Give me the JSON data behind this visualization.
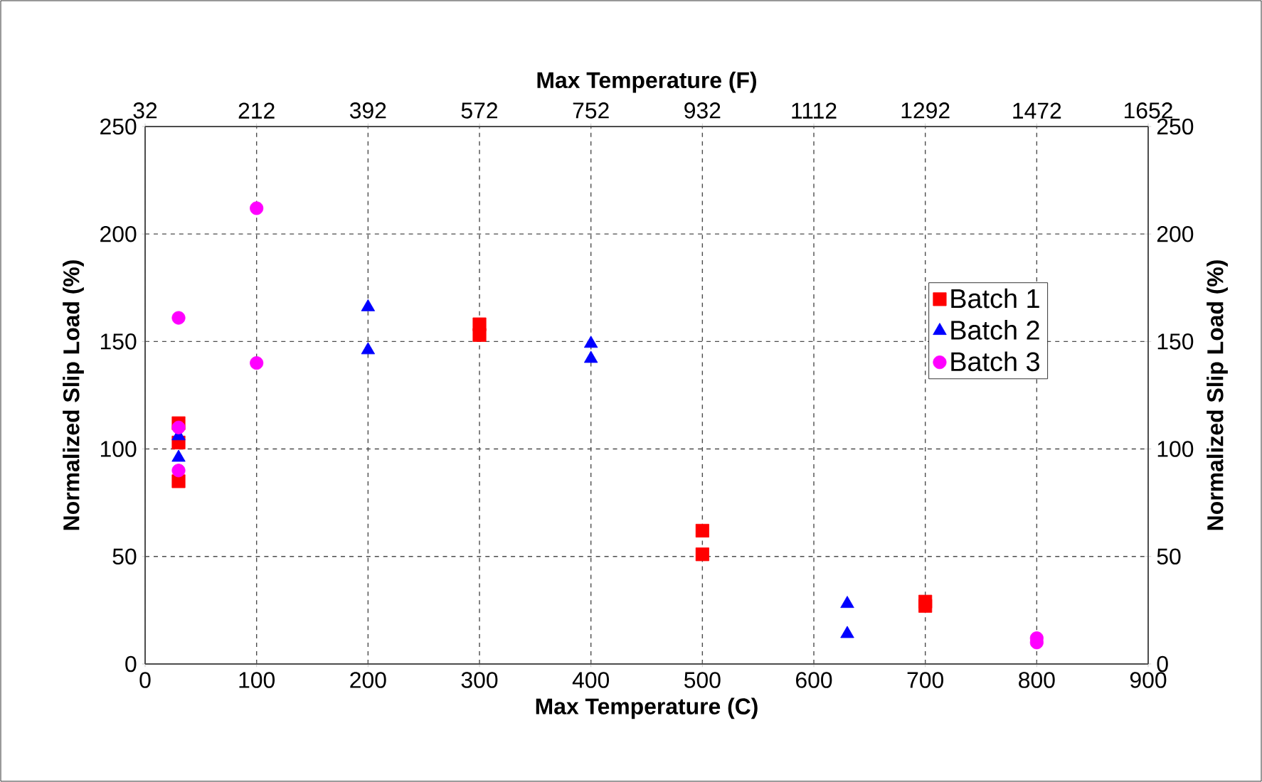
{
  "chart_data": {
    "type": "scatter",
    "xlabel": "Max Temperature (C)",
    "ylabel": "Normalized Slip Load (%)",
    "y2label": "Normalized Slip Load (%)",
    "x2label": "Max Temperature (F)",
    "xlim": [
      0,
      900
    ],
    "xticks": [
      0,
      100,
      200,
      300,
      400,
      500,
      600,
      700,
      800,
      900
    ],
    "ylim": [
      0,
      250
    ],
    "yticks": [
      0,
      50,
      100,
      150,
      200,
      250
    ],
    "y2lim": [
      0,
      250
    ],
    "y2ticks": [
      0,
      50,
      100,
      150,
      200,
      250
    ],
    "x2lim": [
      32,
      1652
    ],
    "x2ticks": [
      32,
      212,
      392,
      572,
      752,
      932,
      1112,
      1292,
      1472,
      1652
    ],
    "grid": true,
    "legend": "right",
    "series": [
      {
        "name": "Batch 1",
        "color": "#ff0000",
        "marker": "square",
        "x": [
          30,
          30,
          30,
          300,
          300,
          500,
          500,
          700,
          700
        ],
        "values": [
          112,
          103,
          85,
          158,
          153,
          62,
          51,
          29,
          27
        ]
      },
      {
        "name": "Batch 2",
        "color": "#0000ff",
        "marker": "triangle",
        "x": [
          30,
          30,
          200,
          200,
          400,
          400,
          630,
          630
        ],
        "values": [
          106,
          96,
          166,
          146,
          149,
          142,
          28,
          14
        ]
      },
      {
        "name": "Batch 3",
        "color": "#ff00ff",
        "marker": "circle",
        "x": [
          30,
          30,
          30,
          100,
          100,
          800,
          800
        ],
        "values": [
          161,
          110,
          90,
          212,
          140,
          12,
          10
        ]
      }
    ]
  }
}
